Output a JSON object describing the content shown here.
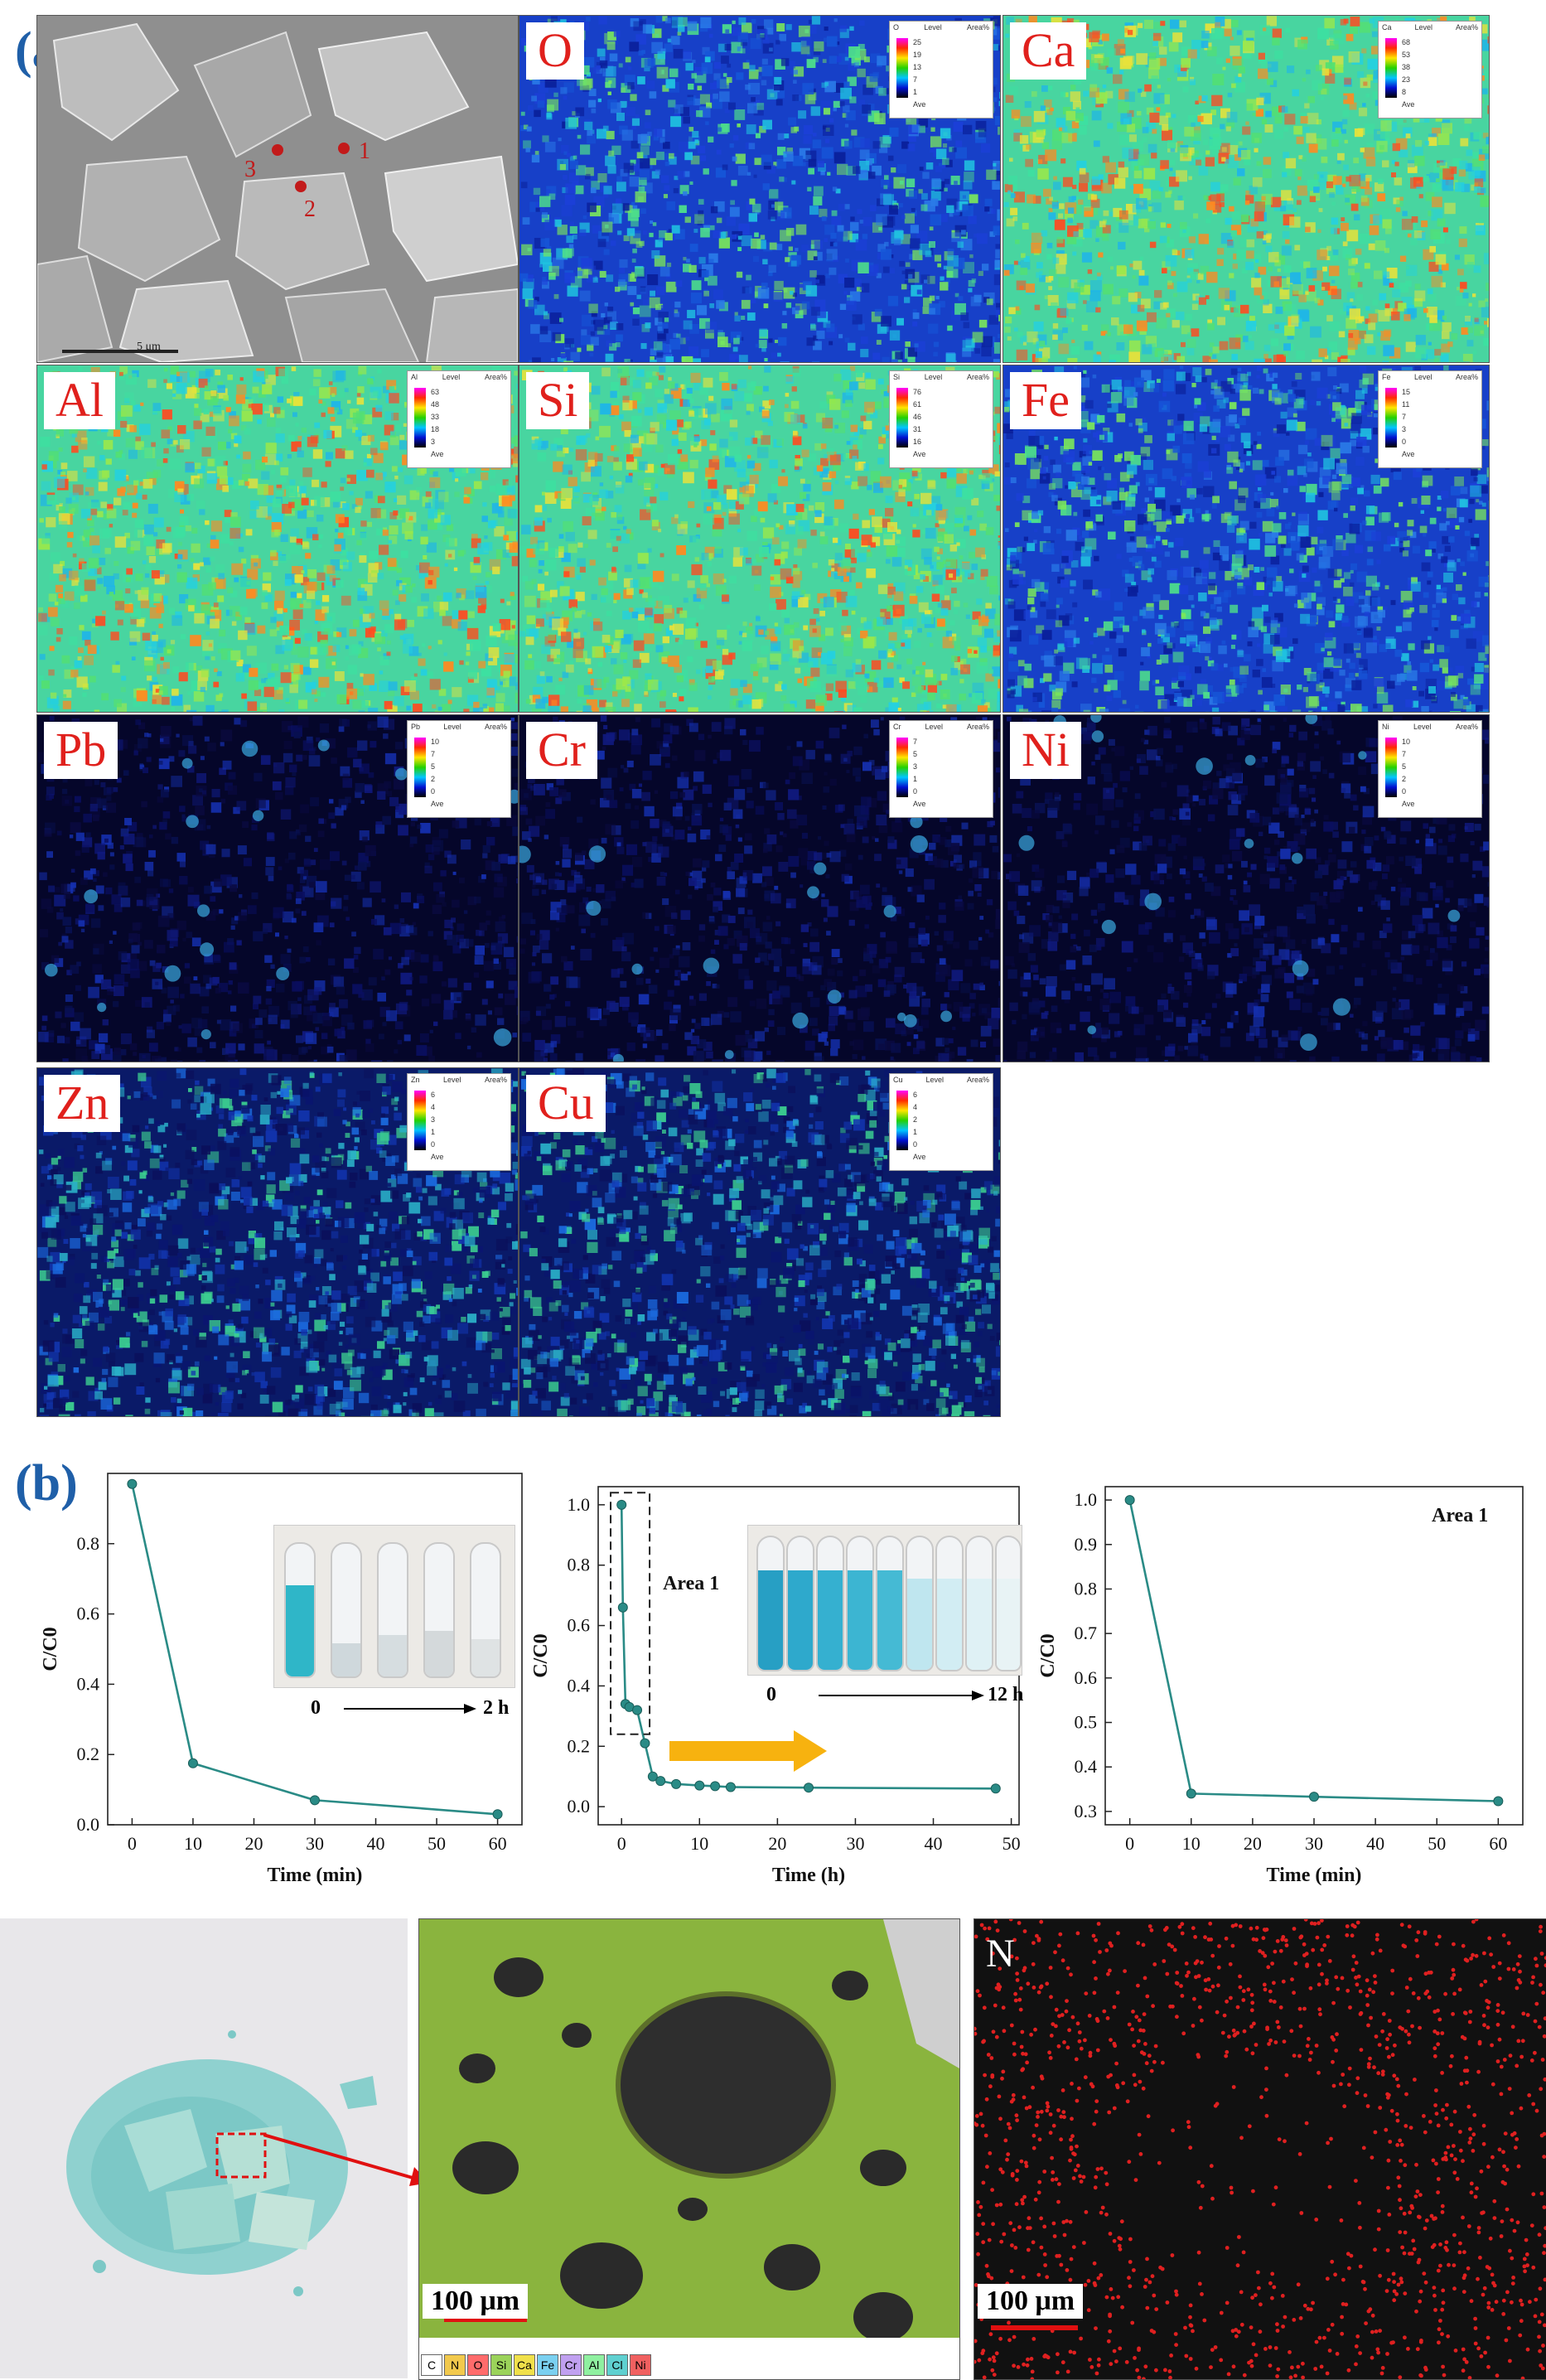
{
  "figure": {
    "panel_a_label": "(a)",
    "panel_b_label": "(b)",
    "sem_image": {
      "point_labels": [
        "1",
        "2",
        "3"
      ],
      "scale_text": "5 μm"
    },
    "element_maps": [
      {
        "element": "O",
        "tone": "medium",
        "legend_header": [
          "O",
          "Level",
          "Area%"
        ],
        "legend_rows": [
          "25",
          "19",
          "13",
          "7",
          "1",
          "Ave"
        ]
      },
      {
        "element": "Ca",
        "tone": "high",
        "legend_header": [
          "Ca",
          "Level",
          "Area%"
        ],
        "legend_rows": [
          "68",
          "53",
          "38",
          "23",
          "8",
          "Ave"
        ]
      },
      {
        "element": "Al",
        "tone": "high",
        "legend_header": [
          "Al",
          "Level",
          "Area%"
        ],
        "legend_rows": [
          "63",
          "48",
          "33",
          "18",
          "3",
          "Ave"
        ]
      },
      {
        "element": "Si",
        "tone": "high",
        "legend_header": [
          "Si",
          "Level",
          "Area%"
        ],
        "legend_rows": [
          "76",
          "61",
          "46",
          "31",
          "16",
          "Ave"
        ]
      },
      {
        "element": "Fe",
        "tone": "medium",
        "legend_header": [
          "Fe",
          "Level",
          "Area%"
        ],
        "legend_rows": [
          "15",
          "11",
          "7",
          "3",
          "0",
          "Ave"
        ]
      },
      {
        "element": "Pb",
        "tone": "sparse",
        "legend_header": [
          "Pb",
          "Level",
          "Area%"
        ],
        "legend_rows": [
          "10",
          "7",
          "5",
          "2",
          "0",
          "Ave"
        ]
      },
      {
        "element": "Cr",
        "tone": "sparse",
        "legend_header": [
          "Cr",
          "Level",
          "Area%"
        ],
        "legend_rows": [
          "7",
          "5",
          "3",
          "1",
          "0",
          "Ave"
        ]
      },
      {
        "element": "Ni",
        "tone": "sparse",
        "legend_header": [
          "Ni",
          "Level",
          "Area%"
        ],
        "legend_rows": [
          "10",
          "7",
          "5",
          "2",
          "0",
          "Ave"
        ]
      },
      {
        "element": "Zn",
        "tone": "low",
        "legend_header": [
          "Zn",
          "Level",
          "Area%"
        ],
        "legend_rows": [
          "6",
          "4",
          "3",
          "1",
          "0",
          "Ave"
        ]
      },
      {
        "element": "Cu",
        "tone": "low",
        "legend_header": [
          "Cu",
          "Level",
          "Area%"
        ],
        "legend_rows": [
          "6",
          "4",
          "2",
          "1",
          "0",
          "Ave"
        ]
      }
    ],
    "bottom_row": {
      "scale_label_1": "100 μm",
      "scale_label_2": "100 μm",
      "n_map_label": "N",
      "eds_legend_elements": [
        "C",
        "N",
        "O",
        "Si",
        "Ca",
        "Fe",
        "Cr",
        "Al",
        "Cl",
        "Ni"
      ]
    },
    "inset_left": {
      "from": "0",
      "to": "2 h"
    },
    "inset_middle": {
      "from": "0",
      "to": "12 h"
    }
  },
  "chart_data": [
    {
      "type": "line",
      "xlabel": "Time (min)",
      "ylabel": "C/C0",
      "xlim": [
        -4,
        64
      ],
      "ylim": [
        0,
        1.0
      ],
      "xticks": [
        0,
        10,
        20,
        30,
        40,
        50,
        60
      ],
      "yticks": [
        0.0,
        0.2,
        0.4,
        0.6,
        0.8
      ],
      "color": "#2a8b86",
      "series": [
        {
          "x": [
            0,
            10,
            30,
            60
          ],
          "y": [
            0.97,
            0.175,
            0.07,
            0.03
          ]
        }
      ],
      "legend": "none",
      "grid": false
    },
    {
      "type": "line",
      "xlabel": "Time (h)",
      "ylabel": "C/C0",
      "xlim": [
        -3,
        51
      ],
      "ylim": [
        -0.06,
        1.06
      ],
      "xticks": [
        0,
        10,
        20,
        30,
        40,
        50
      ],
      "yticks": [
        0.0,
        0.2,
        0.4,
        0.6,
        0.8,
        1.0
      ],
      "color": "#2a8b86",
      "series": [
        {
          "x": [
            0,
            0.17,
            0.5,
            1,
            2,
            3,
            4,
            5,
            7,
            10,
            12,
            14,
            24,
            48
          ],
          "y": [
            1.0,
            0.66,
            0.34,
            0.33,
            0.32,
            0.21,
            0.1,
            0.085,
            0.075,
            0.07,
            0.068,
            0.065,
            0.063,
            0.06
          ]
        }
      ],
      "annotations": [
        "Area 1"
      ],
      "legend": "none",
      "grid": false
    },
    {
      "type": "line",
      "xlabel": "Time (min)",
      "ylabel": "C/C0",
      "xlim": [
        -4,
        64
      ],
      "ylim": [
        0.27,
        1.03
      ],
      "xticks": [
        0,
        10,
        20,
        30,
        40,
        50,
        60
      ],
      "yticks": [
        0.3,
        0.4,
        0.5,
        0.6,
        0.7,
        0.8,
        0.9,
        1.0
      ],
      "color": "#2a8b86",
      "series": [
        {
          "x": [
            0,
            10,
            30,
            60
          ],
          "y": [
            1.0,
            0.34,
            0.333,
            0.323
          ]
        }
      ],
      "annotations": [
        "Area 1"
      ],
      "legend": "none",
      "grid": false
    }
  ]
}
